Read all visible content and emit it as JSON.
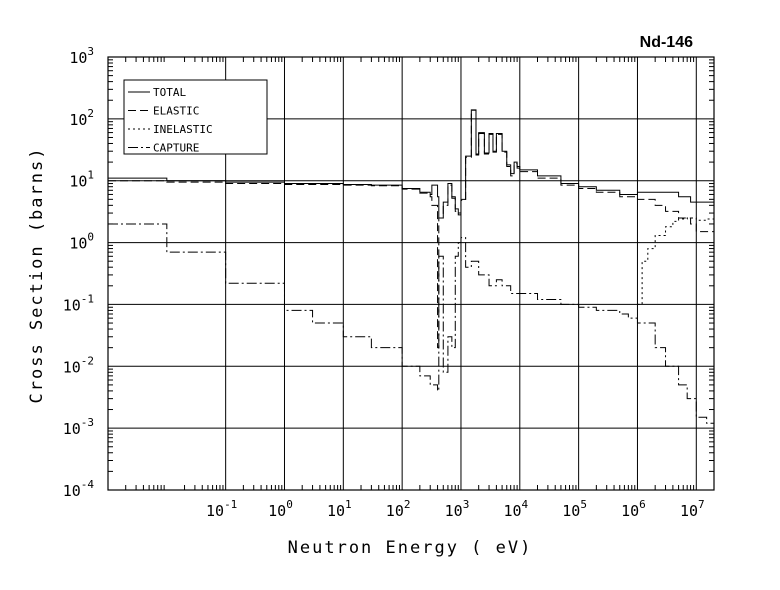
{
  "chart_data": {
    "type": "line",
    "title": "Nd-146",
    "xlabel": "Neutron Energy ( eV)",
    "ylabel": "Cross Section (barns)",
    "xscale": "log",
    "yscale": "log",
    "xlim": [
      0.001,
      20000000
    ],
    "ylim": [
      0.0001,
      1000
    ],
    "grid": true,
    "legend_position": "top-left",
    "x_ticks": [
      {
        "base": "10",
        "exp": "-1",
        "value": 0.1
      },
      {
        "base": "10",
        "exp": "0",
        "value": 1
      },
      {
        "base": "10",
        "exp": "1",
        "value": 10
      },
      {
        "base": "10",
        "exp": "2",
        "value": 100
      },
      {
        "base": "10",
        "exp": "3",
        "value": 1000
      },
      {
        "base": "10",
        "exp": "4",
        "value": 10000
      },
      {
        "base": "10",
        "exp": "5",
        "value": 100000
      },
      {
        "base": "10",
        "exp": "6",
        "value": 1000000
      },
      {
        "base": "10",
        "exp": "7",
        "value": 10000000
      }
    ],
    "y_ticks": [
      {
        "base": "10",
        "exp": "-4",
        "value": 0.0001
      },
      {
        "base": "10",
        "exp": "-3",
        "value": 0.001
      },
      {
        "base": "10",
        "exp": "-2",
        "value": 0.01
      },
      {
        "base": "10",
        "exp": "-1",
        "value": 0.1
      },
      {
        "base": "10",
        "exp": "0",
        "value": 1
      },
      {
        "base": "10",
        "exp": "1",
        "value": 10
      },
      {
        "base": "10",
        "exp": "2",
        "value": 100
      },
      {
        "base": "10",
        "exp": "3",
        "value": 1000
      }
    ],
    "series": [
      {
        "name": "TOTAL",
        "dash": "none",
        "x": [
          0.001,
          0.01,
          0.1,
          1,
          10,
          30,
          100,
          200,
          300,
          320,
          400,
          420,
          500,
          600,
          700,
          800,
          900,
          1000,
          1200,
          1500,
          1800,
          2000,
          2500,
          3000,
          3500,
          4000,
          5000,
          6000,
          7000,
          8000,
          9000,
          10000,
          20000,
          50000,
          100000,
          200000,
          500000,
          1000000,
          2000000,
          5000000,
          8000000,
          10000000,
          20000000
        ],
        "y": [
          11,
          10,
          9.5,
          9.0,
          8.7,
          8.5,
          7.5,
          6.5,
          6.0,
          8.5,
          5.5,
          2.5,
          4.5,
          9.0,
          5.5,
          3.5,
          3.0,
          5.0,
          25,
          140,
          27,
          60,
          28,
          58,
          30,
          58,
          30,
          18,
          13,
          20,
          17,
          15,
          12,
          9,
          8,
          7,
          6,
          6.5,
          6.5,
          5.5,
          4.5,
          4.5,
          5
        ]
      },
      {
        "name": "ELASTIC",
        "dash": "8,4",
        "x": [
          0.001,
          0.01,
          0.1,
          1,
          10,
          30,
          100,
          200,
          300,
          320,
          400,
          420,
          500,
          600,
          700,
          800,
          900,
          1000,
          1200,
          1500,
          1800,
          2000,
          2500,
          3000,
          3500,
          4000,
          5000,
          6000,
          7000,
          8000,
          9000,
          10000,
          20000,
          50000,
          100000,
          200000,
          500000,
          1000000,
          2000000,
          3000000,
          5000000,
          8000000,
          10000000,
          20000000
        ],
        "y": [
          10,
          9.5,
          9.0,
          8.7,
          8.5,
          8.3,
          7.3,
          6.3,
          5.5,
          4.0,
          0.02,
          2.5,
          4.0,
          8.5,
          5.2,
          3.2,
          2.8,
          4.8,
          24,
          138,
          26,
          58,
          27,
          56,
          29,
          56,
          29,
          17,
          12,
          19,
          16,
          14,
          11,
          8.5,
          7.5,
          6.5,
          5.5,
          5,
          4,
          3.2,
          2.5,
          2.0,
          1.5,
          0.5
        ]
      },
      {
        "name": "INELASTIC",
        "dash": "2,3",
        "x": [
          1000000,
          1200000,
          1500000,
          2000000,
          3000000,
          4000000,
          5000000,
          7000000,
          10000000,
          15000000,
          20000000
        ],
        "y": [
          0.1,
          0.5,
          0.8,
          1.3,
          1.8,
          2.2,
          2.4,
          2.5,
          2.3,
          2.4,
          2.8
        ]
      },
      {
        "name": "CAPTURE",
        "dash": "10,3,2,3",
        "x": [
          0.001,
          0.01,
          0.1,
          1,
          3,
          10,
          30,
          100,
          200,
          300,
          400,
          420,
          500,
          600,
          700,
          800,
          900,
          1000,
          1200,
          1500,
          2000,
          3000,
          4000,
          5000,
          7000,
          10000,
          20000,
          50000,
          100000,
          200000,
          500000,
          700000,
          1000000,
          2000000,
          3000000,
          5000000,
          7000000,
          10000000,
          15000000,
          20000000
        ],
        "y": [
          2.0,
          0.7,
          0.22,
          0.08,
          0.05,
          0.03,
          0.02,
          0.01,
          0.007,
          0.005,
          0.004,
          0.6,
          0.008,
          0.03,
          0.02,
          0.6,
          1.0,
          1.2,
          0.4,
          0.5,
          0.3,
          0.2,
          0.25,
          0.2,
          0.15,
          0.15,
          0.12,
          0.1,
          0.09,
          0.08,
          0.07,
          0.06,
          0.05,
          0.02,
          0.01,
          0.005,
          0.003,
          0.0015,
          0.0012,
          0.0015
        ]
      }
    ]
  }
}
